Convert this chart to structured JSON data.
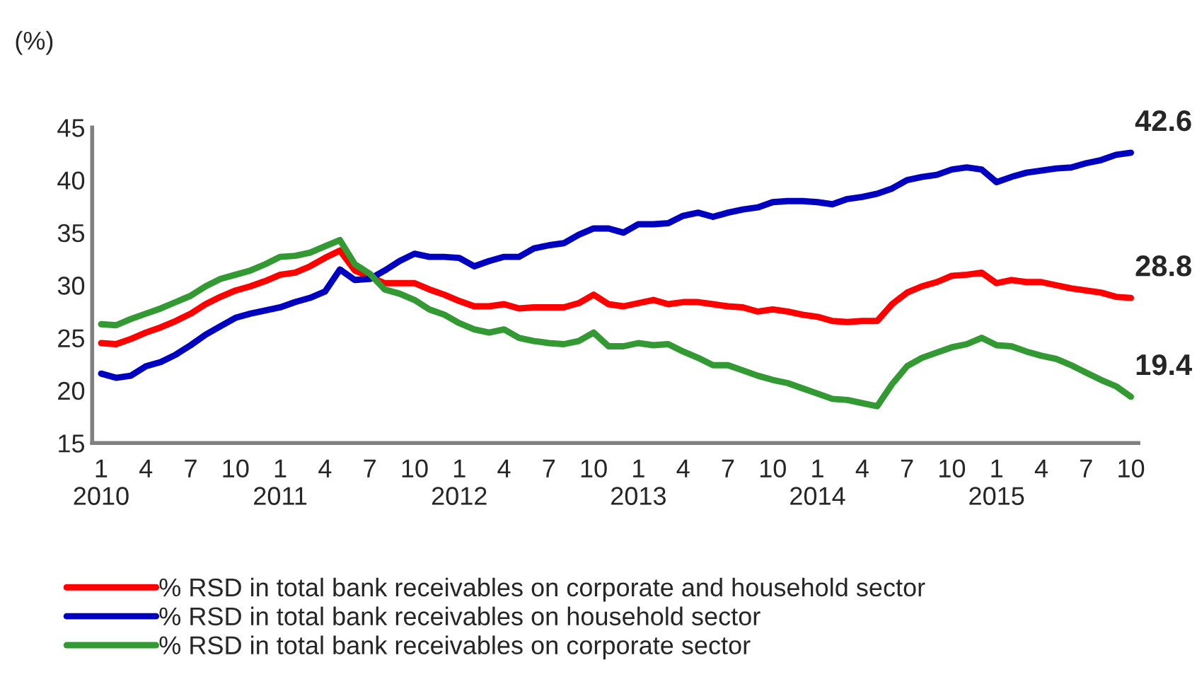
{
  "chart_data": {
    "type": "line",
    "ylabel": "(%)",
    "categories": [
      "1\n2010",
      null,
      null,
      "4",
      null,
      null,
      "7",
      null,
      null,
      "10",
      null,
      null,
      "1\n2011",
      null,
      null,
      "4",
      null,
      null,
      "7",
      null,
      null,
      "10",
      null,
      null,
      "1\n2012",
      null,
      null,
      "4",
      null,
      null,
      "7",
      null,
      null,
      "10",
      null,
      null,
      "1\n2013",
      null,
      null,
      "4",
      null,
      null,
      "7",
      null,
      null,
      "10",
      null,
      null,
      "1\n2014",
      null,
      null,
      "4",
      null,
      null,
      "7",
      null,
      null,
      "10",
      null,
      null,
      "1\n2015",
      null,
      null,
      "4",
      null,
      null,
      "7",
      null,
      null,
      "10"
    ],
    "series": [
      {
        "name": "% RSD in total bank receivables on corporate and household sector",
        "color": "#ff0000",
        "values": [
          24.5,
          24.4,
          24.9,
          25.5,
          26.0,
          26.6,
          27.3,
          28.2,
          28.9,
          29.5,
          29.9,
          30.4,
          31.0,
          31.2,
          31.8,
          32.6,
          33.3,
          31.4,
          30.8,
          30.2,
          30.2,
          30.2,
          29.6,
          29.1,
          28.5,
          28.0,
          28.0,
          28.2,
          27.8,
          27.9,
          27.9,
          27.9,
          28.3,
          29.1,
          28.2,
          28.0,
          28.3,
          28.6,
          28.2,
          28.4,
          28.4,
          28.2,
          28.0,
          27.9,
          27.5,
          27.7,
          27.5,
          27.2,
          27.0,
          26.6,
          26.5,
          26.6,
          26.6,
          28.2,
          29.3,
          29.9,
          30.3,
          30.9,
          31.0,
          31.2,
          30.2,
          30.5,
          30.3,
          30.3,
          30.0,
          29.7,
          29.5,
          29.3,
          28.9,
          28.8
        ],
        "value_labels": [
          null,
          null,
          null,
          null,
          null,
          null,
          null,
          null,
          null,
          null,
          null,
          null,
          null,
          null,
          null,
          null,
          null,
          null,
          null,
          null,
          null,
          null,
          null,
          null,
          null,
          null,
          null,
          null,
          null,
          null,
          null,
          null,
          null,
          null,
          null,
          null,
          null,
          null,
          null,
          null,
          null,
          null,
          null,
          null,
          null,
          null,
          null,
          null,
          null,
          null,
          null,
          null,
          null,
          null,
          null,
          null,
          null,
          null,
          null,
          null,
          null,
          null,
          null,
          null,
          null,
          null,
          null,
          null,
          null,
          "28.8"
        ]
      },
      {
        "name": "% RSD in total bank receivables on household sector",
        "color": "#0000c0",
        "values": [
          21.6,
          21.2,
          21.4,
          22.3,
          22.7,
          23.4,
          24.3,
          25.3,
          26.1,
          26.9,
          27.3,
          27.6,
          27.9,
          28.4,
          28.8,
          29.4,
          31.5,
          30.5,
          30.6,
          31.4,
          32.3,
          33.0,
          32.7,
          32.7,
          32.6,
          31.8,
          32.3,
          32.7,
          32.7,
          33.5,
          33.8,
          34.0,
          34.8,
          35.4,
          35.4,
          35.0,
          35.8,
          35.8,
          35.9,
          36.6,
          36.9,
          36.5,
          36.9,
          37.2,
          37.4,
          37.9,
          38.0,
          38.0,
          37.9,
          37.7,
          38.2,
          38.4,
          38.7,
          39.2,
          40.0,
          40.3,
          40.5,
          41.0,
          41.2,
          41.0,
          39.8,
          40.3,
          40.7,
          40.9,
          41.1,
          41.2,
          41.6,
          41.9,
          42.4,
          42.6
        ],
        "value_labels": [
          null,
          null,
          null,
          null,
          null,
          null,
          null,
          null,
          null,
          null,
          null,
          null,
          null,
          null,
          null,
          null,
          null,
          null,
          null,
          null,
          null,
          null,
          null,
          null,
          null,
          null,
          null,
          null,
          null,
          null,
          null,
          null,
          null,
          null,
          null,
          null,
          null,
          null,
          null,
          null,
          null,
          null,
          null,
          null,
          null,
          null,
          null,
          null,
          null,
          null,
          null,
          null,
          null,
          null,
          null,
          null,
          null,
          null,
          null,
          null,
          null,
          null,
          null,
          null,
          null,
          null,
          null,
          null,
          null,
          "42.6"
        ]
      },
      {
        "name": "% RSD in total bank receivables on corporate sector",
        "color": "#339933",
        "values": [
          26.3,
          26.2,
          26.8,
          27.3,
          27.8,
          28.4,
          29.0,
          29.9,
          30.6,
          31.0,
          31.4,
          32.0,
          32.7,
          32.8,
          33.1,
          33.7,
          34.3,
          32.0,
          31.1,
          29.6,
          29.2,
          28.6,
          27.7,
          27.2,
          26.4,
          25.8,
          25.5,
          25.8,
          25.0,
          24.7,
          24.5,
          24.4,
          24.7,
          25.5,
          24.2,
          24.2,
          24.5,
          24.3,
          24.4,
          23.7,
          23.1,
          22.4,
          22.4,
          21.9,
          21.4,
          21.0,
          20.7,
          20.2,
          19.7,
          19.2,
          19.1,
          18.8,
          18.5,
          20.6,
          22.3,
          23.1,
          23.6,
          24.1,
          24.4,
          25.0,
          24.3,
          24.2,
          23.7,
          23.3,
          23.0,
          22.4,
          21.7,
          21.0,
          20.4,
          19.4
        ],
        "value_labels": [
          null,
          null,
          null,
          null,
          null,
          null,
          null,
          null,
          null,
          null,
          null,
          null,
          null,
          null,
          null,
          null,
          null,
          null,
          null,
          null,
          null,
          null,
          null,
          null,
          null,
          null,
          null,
          null,
          null,
          null,
          null,
          null,
          null,
          null,
          null,
          null,
          null,
          null,
          null,
          null,
          null,
          null,
          null,
          null,
          null,
          null,
          null,
          null,
          null,
          null,
          null,
          null,
          null,
          null,
          null,
          null,
          null,
          null,
          null,
          null,
          null,
          null,
          null,
          null,
          null,
          null,
          null,
          null,
          null,
          "19.4"
        ]
      }
    ],
    "ylim": [
      15,
      45
    ],
    "yticks": [
      15,
      20,
      25,
      30,
      35,
      40,
      45
    ],
    "grid": false,
    "legend": "bottom",
    "line_style": "solid",
    "marker": "none"
  }
}
